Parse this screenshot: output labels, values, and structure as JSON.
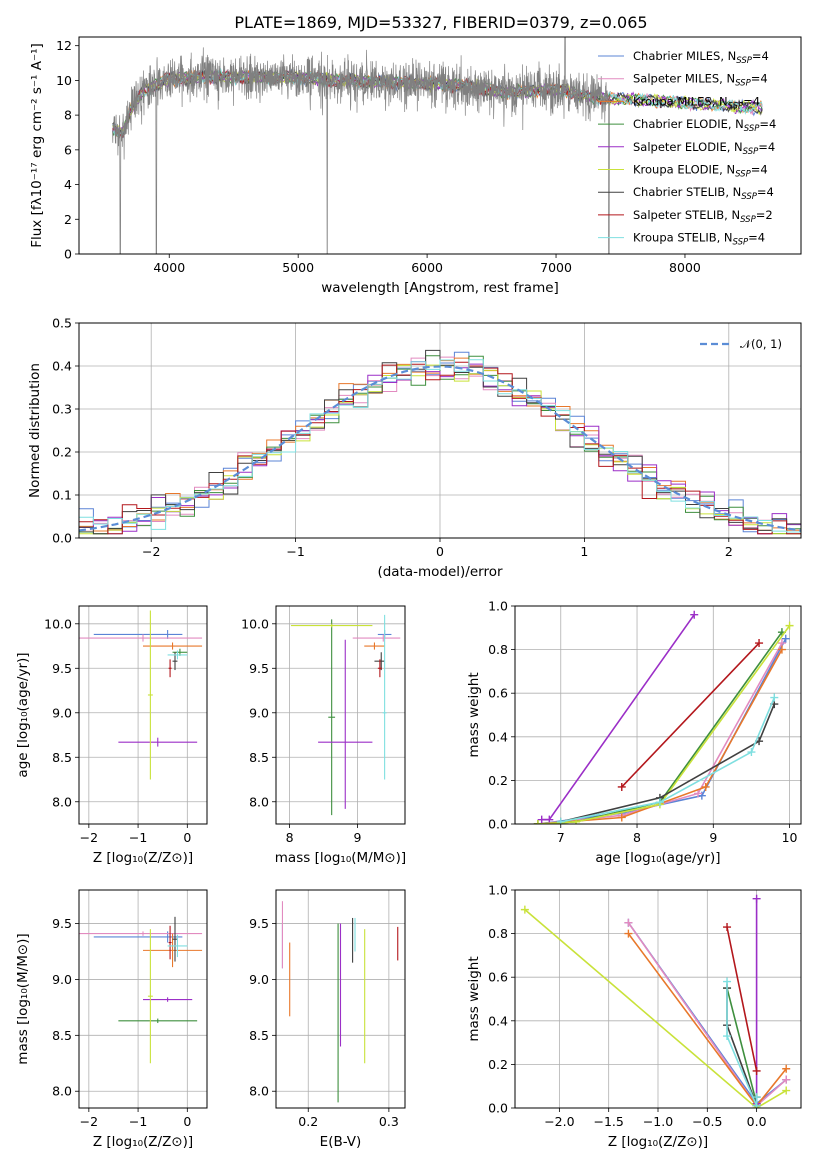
{
  "colors": {
    "Chabrier MILES": "#5b84d6",
    "Salpeter MILES": "#e28bc0",
    "Kroupa MILES": "#e8782b",
    "Chabrier ELODIE": "#3e8f3e",
    "Salpeter ELODIE": "#9b2fc7",
    "Kroupa ELODIE": "#c9e23a",
    "Chabrier STELIB": "#404040",
    "Salpeter STELIB": "#b3171c",
    "Kroupa STELIB": "#7fdfe0",
    "data": "#808080",
    "normal": "#5b8dd6"
  },
  "chart_data": [
    {
      "id": "spectrum",
      "type": "line",
      "title": "PLATE=1869, MJD=53327, FIBERID=0379, z=0.065",
      "xlabel": "wavelength [Angstrom, rest frame]",
      "ylabel": "Flux [fλ10⁻¹⁷ erg cm⁻² s⁻¹ A⁻¹]",
      "xlim": [
        3300,
        8900
      ],
      "ylim": [
        0,
        12.5
      ],
      "xticks": [
        4000,
        5000,
        6000,
        7000,
        8000
      ],
      "yticks": [
        0,
        2,
        4,
        6,
        8,
        10,
        12
      ],
      "grid": false,
      "legend_position": "right",
      "series": [
        {
          "name": "Chabrier MILES, N_SSP=4",
          "key": "Chabrier MILES"
        },
        {
          "name": "Salpeter MILES, N_SSP=4",
          "key": "Salpeter MILES"
        },
        {
          "name": "Kroupa MILES, N_SSP=4",
          "key": "Kroupa MILES"
        },
        {
          "name": "Chabrier ELODIE, N_SSP=4",
          "key": "Chabrier ELODIE"
        },
        {
          "name": "Salpeter ELODIE, N_SSP=4",
          "key": "Salpeter ELODIE"
        },
        {
          "name": "Kroupa ELODIE, N_SSP=4",
          "key": "Kroupa ELODIE"
        },
        {
          "name": "Chabrier STELIB, N_SSP=4",
          "key": "Chabrier STELIB"
        },
        {
          "name": "Salpeter STELIB, N_SSP=2",
          "key": "Salpeter STELIB"
        },
        {
          "name": "Kroupa STELIB, N_SSP=4",
          "key": "Kroupa STELIB"
        }
      ],
      "continuum": [
        [
          3560,
          7.2
        ],
        [
          3640,
          7.0
        ],
        [
          3700,
          8.3
        ],
        [
          3800,
          9.4
        ],
        [
          4000,
          10.1
        ],
        [
          4300,
          10.2
        ],
        [
          4700,
          10.2
        ],
        [
          5000,
          10.2
        ],
        [
          5300,
          10.0
        ],
        [
          5700,
          9.9
        ],
        [
          6000,
          9.8
        ],
        [
          6300,
          9.7
        ],
        [
          6600,
          9.3
        ],
        [
          7000,
          9.5
        ],
        [
          7300,
          9.0
        ],
        [
          7600,
          8.9
        ],
        [
          8000,
          8.7
        ],
        [
          8400,
          8.5
        ],
        [
          8600,
          8.4
        ]
      ],
      "data_range": [
        3560,
        7420
      ]
    },
    {
      "id": "residuals",
      "type": "step",
      "xlabel": "(data-model)/error",
      "ylabel": "Normed distribution",
      "xlim": [
        -2.5,
        2.5
      ],
      "ylim": [
        0,
        0.5
      ],
      "xticks": [
        -2,
        -1,
        0,
        1,
        2
      ],
      "yticks": [
        0.0,
        0.1,
        0.2,
        0.3,
        0.4,
        0.5
      ],
      "grid": true,
      "legend": [
        "𝒩(0, 1)"
      ],
      "legend_position": "top-right",
      "bin_width": 0.1
    },
    {
      "id": "age-vs-Z",
      "type": "errorbar",
      "xlabel": "Z [log₁₀(Z/Z⊙)]",
      "ylabel": "age  [log₁₀(age/yr)]",
      "xlim": [
        -2.2,
        0.4
      ],
      "ylim": [
        7.75,
        10.2
      ],
      "xticks": [
        -2,
        -1,
        0
      ],
      "yticks": [
        8.0,
        8.5,
        9.0,
        9.5,
        10.0
      ],
      "grid": true,
      "points": [
        {
          "key": "Chabrier MILES",
          "x": -0.4,
          "xerr": [
            1.5,
            0.3
          ],
          "y": 9.88,
          "yerr": [
            0.05,
            0.05
          ]
        },
        {
          "key": "Salpeter MILES",
          "x": -0.9,
          "xerr": [
            1.3,
            1.2
          ],
          "y": 9.84,
          "yerr": [
            0.04,
            0.04
          ]
        },
        {
          "key": "Kroupa MILES",
          "x": -0.3,
          "xerr": [
            0.6,
            0.6
          ],
          "y": 9.75,
          "yerr": [
            0.04,
            0.04
          ]
        },
        {
          "key": "Chabrier ELODIE",
          "x": -0.15,
          "xerr": [
            0.15,
            0.15
          ],
          "y": 9.68,
          "yerr": [
            0.04,
            0.04
          ]
        },
        {
          "key": "Salpeter ELODIE",
          "x": -0.6,
          "xerr": [
            0.8,
            0.8
          ],
          "y": 8.67,
          "yerr": [
            0.05,
            0.05
          ]
        },
        {
          "key": "Kroupa ELODIE",
          "x": -0.75,
          "xerr": [
            0.05,
            0.05
          ],
          "y": 9.2,
          "yerr": [
            0.95,
            0.95
          ]
        },
        {
          "key": "Chabrier STELIB",
          "x": -0.25,
          "xerr": [
            0.05,
            0.05
          ],
          "y": 9.58,
          "yerr": [
            0.1,
            0.1
          ]
        },
        {
          "key": "Salpeter STELIB",
          "x": -0.35,
          "xerr": [
            0.03,
            0.03
          ],
          "y": 9.5,
          "yerr": [
            0.1,
            0.1
          ]
        },
        {
          "key": "Kroupa STELIB",
          "x": -0.2,
          "xerr": [
            0.2,
            0.2
          ],
          "y": 9.65,
          "yerr": [
            0.05,
            0.05
          ]
        }
      ]
    },
    {
      "id": "age-vs-mass",
      "type": "errorbar",
      "xlabel": "mass [log₁₀(M/M⊙)]",
      "ylabel": "",
      "xlim": [
        7.8,
        9.7
      ],
      "ylim": [
        7.75,
        10.2
      ],
      "xticks": [
        8,
        9
      ],
      "yticks": [
        8.0,
        8.5,
        9.0,
        9.5,
        10.0
      ],
      "grid": true,
      "points": [
        {
          "key": "Chabrier MILES",
          "x": 9.4,
          "xerr": [
            0.1,
            0.1
          ],
          "y": 9.88,
          "yerr": [
            0.05,
            0.05
          ]
        },
        {
          "key": "Salpeter MILES",
          "x": 9.38,
          "xerr": [
            0.45,
            0.25
          ],
          "y": 9.84,
          "yerr": [
            0.04,
            0.04
          ]
        },
        {
          "key": "Kroupa MILES",
          "x": 9.25,
          "xerr": [
            0.15,
            0.15
          ],
          "y": 9.75,
          "yerr": [
            0.04,
            0.04
          ]
        },
        {
          "key": "Chabrier ELODIE",
          "x": 8.62,
          "xerr": [
            0.05,
            0.05
          ],
          "y": 8.95,
          "yerr": [
            1.1,
            1.1
          ]
        },
        {
          "key": "Salpeter ELODIE",
          "x": 8.82,
          "xerr": [
            0.4,
            0.4
          ],
          "y": 8.67,
          "yerr": [
            0.75,
            1.15
          ]
        },
        {
          "key": "Kroupa ELODIE",
          "x": 8.62,
          "xerr": [
            0.6,
            0.6
          ],
          "y": 9.98,
          "yerr": [
            0.02,
            0.02
          ]
        },
        {
          "key": "Chabrier STELIB",
          "x": 9.35,
          "xerr": [
            0.1,
            0.05
          ],
          "y": 9.58,
          "yerr": [
            0.1,
            0.1
          ]
        },
        {
          "key": "Salpeter STELIB",
          "x": 9.33,
          "xerr": [
            0.03,
            0.03
          ],
          "y": 9.5,
          "yerr": [
            0.1,
            0.1
          ]
        },
        {
          "key": "Kroupa STELIB",
          "x": 9.4,
          "xerr": [
            0.03,
            0.03
          ],
          "y": 9.0,
          "yerr": [
            0.75,
            1.1
          ]
        }
      ]
    },
    {
      "id": "weight-vs-age",
      "type": "line",
      "xlabel": "age  [log₁₀(age/yr)]",
      "ylabel": "mass weight",
      "xlim": [
        6.4,
        10.15
      ],
      "ylim": [
        0,
        1.0
      ],
      "xticks": [
        7,
        8,
        9,
        10
      ],
      "yticks": [
        0.0,
        0.2,
        0.4,
        0.6,
        0.8,
        1.0
      ],
      "grid": true,
      "series": [
        {
          "key": "Chabrier MILES",
          "x": [
            6.7,
            7.8,
            8.85,
            9.95
          ],
          "y": [
            0.0,
            0.05,
            0.13,
            0.85
          ]
        },
        {
          "key": "Salpeter MILES",
          "x": [
            6.7,
            7.8,
            8.8,
            9.9
          ],
          "y": [
            0.0,
            0.04,
            0.14,
            0.83
          ]
        },
        {
          "key": "Kroupa MILES",
          "x": [
            6.7,
            7.8,
            8.9,
            9.9
          ],
          "y": [
            0.0,
            0.03,
            0.17,
            0.8
          ]
        },
        {
          "key": "Chabrier ELODIE",
          "x": [
            6.7,
            7.2,
            8.3,
            9.9
          ],
          "y": [
            0.0,
            0.01,
            0.1,
            0.88
          ]
        },
        {
          "key": "Salpeter ELODIE",
          "x": [
            6.75,
            6.85,
            8.75
          ],
          "y": [
            0.02,
            0.02,
            0.96
          ]
        },
        {
          "key": "Kroupa ELODIE",
          "x": [
            6.7,
            7.2,
            8.3,
            10.0
          ],
          "y": [
            0.0,
            0.01,
            0.09,
            0.91
          ]
        },
        {
          "key": "Chabrier STELIB",
          "x": [
            7.0,
            8.3,
            9.6,
            9.8
          ],
          "y": [
            0.01,
            0.12,
            0.38,
            0.55
          ]
        },
        {
          "key": "Salpeter STELIB",
          "x": [
            7.8,
            9.6
          ],
          "y": [
            0.17,
            0.83
          ]
        },
        {
          "key": "Kroupa STELIB",
          "x": [
            7.0,
            8.3,
            9.5,
            9.8
          ],
          "y": [
            0.01,
            0.1,
            0.33,
            0.58
          ]
        }
      ]
    },
    {
      "id": "mass-vs-Z",
      "type": "errorbar",
      "xlabel": "Z [log₁₀(Z/Z⊙)]",
      "ylabel": "mass [log₁₀(M/M⊙)]",
      "xlim": [
        -2.2,
        0.4
      ],
      "ylim": [
        7.85,
        9.8
      ],
      "xticks": [
        -2,
        -1,
        0
      ],
      "yticks": [
        8.0,
        8.5,
        9.0,
        9.5
      ],
      "grid": true,
      "points": [
        {
          "key": "Chabrier MILES",
          "x": -0.4,
          "xerr": [
            1.5,
            0.3
          ],
          "y": 9.38,
          "yerr": [
            0.05,
            0.05
          ]
        },
        {
          "key": "Salpeter MILES",
          "x": -0.9,
          "xerr": [
            1.3,
            1.2
          ],
          "y": 9.41,
          "yerr": [
            0.02,
            0.02
          ]
        },
        {
          "key": "Kroupa MILES",
          "x": -0.3,
          "xerr": [
            0.6,
            0.6
          ],
          "y": 9.26,
          "yerr": [
            0.15,
            0.15
          ]
        },
        {
          "key": "Chabrier ELODIE",
          "x": -0.6,
          "xerr": [
            0.8,
            0.8
          ],
          "y": 8.63,
          "yerr": [
            0.02,
            0.02
          ]
        },
        {
          "key": "Salpeter ELODIE",
          "x": -0.4,
          "xerr": [
            0.5,
            0.5
          ],
          "y": 8.82,
          "yerr": [
            0.02,
            0.02
          ]
        },
        {
          "key": "Kroupa ELODIE",
          "x": -0.75,
          "xerr": [
            0.05,
            0.05
          ],
          "y": 8.85,
          "yerr": [
            0.6,
            0.6
          ]
        },
        {
          "key": "Chabrier STELIB",
          "x": -0.25,
          "xerr": [
            0.05,
            0.05
          ],
          "y": 9.36,
          "yerr": [
            0.2,
            0.2
          ]
        },
        {
          "key": "Salpeter STELIB",
          "x": -0.35,
          "xerr": [
            0.03,
            0.03
          ],
          "y": 9.33,
          "yerr": [
            0.15,
            0.15
          ]
        },
        {
          "key": "Kroupa STELIB",
          "x": -0.2,
          "xerr": [
            0.2,
            0.2
          ],
          "y": 9.3,
          "yerr": [
            0.1,
            0.1
          ]
        }
      ]
    },
    {
      "id": "mass-vs-ebv",
      "type": "errorbar",
      "xlabel": "E(B-V)",
      "ylabel": "",
      "xlim": [
        0.16,
        0.32
      ],
      "ylim": [
        7.85,
        9.8
      ],
      "xticks": [
        0.2,
        0.3
      ],
      "yticks": [
        8.0,
        8.5,
        9.0,
        9.5
      ],
      "grid": true,
      "points": [
        {
          "key": "Chabrier MILES",
          "x": 0.168,
          "xerr": [
            0.0,
            0.0
          ],
          "y": 9.3,
          "yerr": [
            0.2,
            0.2
          ]
        },
        {
          "key": "Salpeter MILES",
          "x": 0.168,
          "xerr": [
            0.0,
            0.0
          ],
          "y": 9.4,
          "yerr": [
            0.3,
            0.3
          ]
        },
        {
          "key": "Kroupa MILES",
          "x": 0.177,
          "xerr": [
            0.0,
            0.0
          ],
          "y": 9.0,
          "yerr": [
            0.33,
            0.33
          ]
        },
        {
          "key": "Chabrier ELODIE",
          "x": 0.237,
          "xerr": [
            0.0,
            0.0
          ],
          "y": 8.7,
          "yerr": [
            0.8,
            0.8
          ]
        },
        {
          "key": "Salpeter ELODIE",
          "x": 0.24,
          "xerr": [
            0.0,
            0.0
          ],
          "y": 8.95,
          "yerr": [
            0.55,
            0.55
          ]
        },
        {
          "key": "Kroupa ELODIE",
          "x": 0.27,
          "xerr": [
            0.0,
            0.0
          ],
          "y": 8.85,
          "yerr": [
            0.6,
            0.6
          ]
        },
        {
          "key": "Chabrier STELIB",
          "x": 0.255,
          "xerr": [
            0.0,
            0.0
          ],
          "y": 9.35,
          "yerr": [
            0.2,
            0.2
          ]
        },
        {
          "key": "Salpeter STELIB",
          "x": 0.311,
          "xerr": [
            0.0,
            0.0
          ],
          "y": 9.32,
          "yerr": [
            0.15,
            0.15
          ]
        },
        {
          "key": "Kroupa STELIB",
          "x": 0.258,
          "xerr": [
            0.0,
            0.0
          ],
          "y": 9.4,
          "yerr": [
            0.15,
            0.15
          ]
        }
      ]
    },
    {
      "id": "weight-vs-Z",
      "type": "line",
      "xlabel": "Z [log₁₀(Z/Z⊙)]",
      "ylabel": "mass weight",
      "xlim": [
        -2.45,
        0.45
      ],
      "ylim": [
        0,
        1.0
      ],
      "xticks": [
        -2.0,
        -1.5,
        -1.0,
        -0.5,
        0.0
      ],
      "yticks": [
        0.0,
        0.2,
        0.4,
        0.6,
        0.8,
        1.0
      ],
      "grid": true,
      "series": [
        {
          "key": "Chabrier MILES",
          "x": [
            -1.3,
            0.0,
            0.3
          ],
          "y": [
            0.85,
            0.02,
            0.13
          ]
        },
        {
          "key": "Salpeter MILES",
          "x": [
            -1.3,
            0.0,
            0.3
          ],
          "y": [
            0.85,
            0.01,
            0.13
          ]
        },
        {
          "key": "Kroupa MILES",
          "x": [
            -1.3,
            0.0,
            0.3
          ],
          "y": [
            0.8,
            0.01,
            0.18
          ]
        },
        {
          "key": "Chabrier ELODIE",
          "x": [
            -0.3,
            0.0
          ],
          "y": [
            0.55,
            0.02
          ]
        },
        {
          "key": "Salpeter ELODIE",
          "x": [
            0.0,
            0.0
          ],
          "y": [
            0.96,
            0.02
          ]
        },
        {
          "key": "Kroupa ELODIE",
          "x": [
            -2.35,
            0.0,
            0.3
          ],
          "y": [
            0.91,
            0.0,
            0.08
          ]
        },
        {
          "key": "Chabrier STELIB",
          "x": [
            -0.3,
            -0.3,
            0.0,
            0.0
          ],
          "y": [
            0.55,
            0.38,
            0.01,
            0.05
          ]
        },
        {
          "key": "Salpeter STELIB",
          "x": [
            -0.3,
            0.0
          ],
          "y": [
            0.83,
            0.17
          ]
        },
        {
          "key": "Kroupa STELIB",
          "x": [
            -0.3,
            -0.3,
            0.0,
            0.0
          ],
          "y": [
            0.58,
            0.33,
            0.01,
            0.05
          ]
        }
      ]
    }
  ]
}
